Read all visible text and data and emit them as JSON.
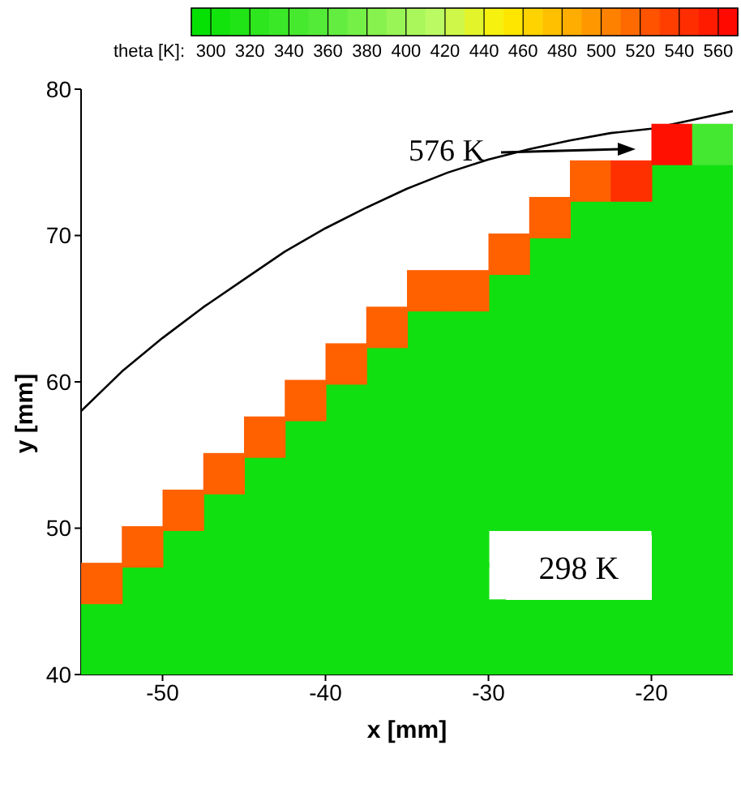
{
  "chart_data": {
    "type": "scatter",
    "xlabel": "x  [mm]",
    "ylabel": "y  [mm]",
    "clabel": "theta [K]:",
    "clim": [
      290,
      570
    ],
    "cticks": [
      300,
      320,
      340,
      360,
      380,
      400,
      420,
      440,
      460,
      480,
      500,
      520,
      540,
      560
    ],
    "xlim": [
      -55,
      -15
    ],
    "xticks": [
      -50,
      -40,
      -30,
      -20
    ],
    "ylim": [
      40,
      80
    ],
    "yticks": [
      40,
      50,
      60,
      70,
      80
    ],
    "marker": "square",
    "series": [
      {
        "color": "#10e010",
        "x": [
          -53.75,
          -53.75
        ],
        "values": [
          41.25,
          43.75
        ]
      },
      {
        "color": "#10e010",
        "x": [
          -51.25,
          -51.25,
          -51.25
        ],
        "values": [
          41.25,
          43.75,
          46.25
        ]
      },
      {
        "color": "#10e010",
        "x": [
          -48.75,
          -48.75,
          -48.75,
          -48.75
        ],
        "values": [
          41.25,
          43.75,
          46.25,
          48.75
        ]
      },
      {
        "color": "#10e010",
        "x": [
          -46.25,
          -46.25,
          -46.25,
          -46.25,
          -46.25
        ],
        "values": [
          41.25,
          43.75,
          46.25,
          48.75,
          51.25
        ]
      },
      {
        "color": "#10e010",
        "x": [
          -43.75,
          -43.75,
          -43.75,
          -43.75,
          -43.75,
          -43.75
        ],
        "values": [
          41.25,
          43.75,
          46.25,
          48.75,
          51.25,
          53.75
        ]
      },
      {
        "color": "#10e010",
        "x": [
          -41.25,
          -41.25,
          -41.25,
          -41.25,
          -41.25,
          -41.25,
          -41.25
        ],
        "values": [
          41.25,
          43.75,
          46.25,
          48.75,
          51.25,
          53.75,
          56.25
        ]
      },
      {
        "color": "#10e010",
        "x": [
          -38.75,
          -38.75,
          -38.75,
          -38.75,
          -38.75,
          -38.75,
          -38.75,
          -38.75
        ],
        "values": [
          41.25,
          43.75,
          46.25,
          48.75,
          51.25,
          53.75,
          56.25,
          58.75
        ]
      },
      {
        "color": "#10e010",
        "x": [
          -36.25,
          -36.25,
          -36.25,
          -36.25,
          -36.25,
          -36.25,
          -36.25,
          -36.25,
          -36.25
        ],
        "values": [
          41.25,
          43.75,
          46.25,
          48.75,
          51.25,
          53.75,
          56.25,
          58.75,
          61.25
        ]
      },
      {
        "color": "#10e010",
        "x": [
          -33.75,
          -33.75,
          -33.75,
          -33.75,
          -33.75,
          -33.75,
          -33.75,
          -33.75,
          -33.75,
          -33.75
        ],
        "values": [
          41.25,
          43.75,
          46.25,
          48.75,
          51.25,
          53.75,
          56.25,
          58.75,
          61.25,
          63.75
        ]
      },
      {
        "color": "#10e010",
        "x": [
          -31.25,
          -31.25,
          -31.25,
          -31.25,
          -31.25,
          -31.25,
          -31.25,
          -31.25,
          -31.25,
          -31.25
        ],
        "values": [
          41.25,
          43.75,
          46.25,
          48.75,
          51.25,
          53.75,
          56.25,
          58.75,
          61.25,
          63.75
        ]
      },
      {
        "color": "#10e010",
        "x": [
          -28.75,
          -28.75,
          -28.75,
          -28.75,
          -28.75,
          -28.75,
          -28.75,
          -28.75,
          -28.75
        ],
        "values": [
          41.25,
          43.75,
          51.25,
          53.75,
          56.25,
          58.75,
          61.25,
          63.75,
          66.25
        ]
      },
      {
        "color": "#10e010",
        "x": [
          -26.25,
          -26.25,
          -26.25,
          -26.25,
          -26.25,
          -26.25,
          -26.25,
          -26.25,
          -26.25,
          -26.25
        ],
        "values": [
          41.25,
          43.75,
          51.25,
          53.75,
          56.25,
          58.75,
          61.25,
          63.75,
          66.25,
          68.75
        ]
      },
      {
        "color": "#10e010",
        "x": [
          -23.75,
          -23.75,
          -23.75,
          -23.75,
          -23.75,
          -23.75,
          -23.75,
          -23.75,
          -23.75,
          -23.75,
          -23.75
        ],
        "values": [
          41.25,
          43.75,
          51.25,
          53.75,
          56.25,
          58.75,
          61.25,
          63.75,
          66.25,
          68.75,
          71.25
        ]
      },
      {
        "color": "#10e010",
        "x": [
          -21.25,
          -21.25,
          -21.25,
          -21.25,
          -21.25,
          -21.25,
          -21.25,
          -21.25,
          -21.25,
          -21.25,
          -21.25
        ],
        "values": [
          41.25,
          43.75,
          51.25,
          53.75,
          56.25,
          58.75,
          61.25,
          63.75,
          66.25,
          68.75,
          71.25
        ]
      },
      {
        "color": "#10e010",
        "x": [
          -18.75,
          -18.75,
          -18.75,
          -18.75,
          -18.75,
          -18.75,
          -18.75,
          -18.75,
          -18.75,
          -18.75,
          -18.75,
          -18.75,
          -18.75,
          -18.75
        ],
        "values": [
          41.25,
          43.75,
          46.25,
          48.75,
          51.25,
          53.75,
          56.25,
          58.75,
          61.25,
          63.75,
          66.25,
          68.75,
          71.25,
          73.75
        ]
      },
      {
        "color": "#10e010",
        "x": [
          -16.25,
          -16.25,
          -16.25,
          -16.25,
          -16.25,
          -16.25,
          -16.25,
          -16.25,
          -16.25,
          -16.25,
          -16.25,
          -16.25,
          -16.25,
          -16.25
        ],
        "values": [
          41.25,
          43.75,
          46.25,
          48.75,
          51.25,
          53.75,
          56.25,
          58.75,
          61.25,
          63.75,
          66.25,
          68.75,
          71.25,
          73.75
        ]
      },
      {
        "color": "#ff6000",
        "x": [
          -53.75,
          -51.25,
          -48.75,
          -46.25,
          -43.75,
          -41.25,
          -38.75,
          -36.25,
          -33.75,
          -31.25,
          -28.75,
          -26.25,
          -23.75
        ],
        "values": [
          46.25,
          48.75,
          51.25,
          53.75,
          56.25,
          58.75,
          61.25,
          63.75,
          66.25,
          66.25,
          68.75,
          71.25,
          73.75
        ]
      },
      {
        "color": "#ff3000",
        "x": [
          -21.25
        ],
        "values": [
          73.75
        ]
      },
      {
        "color": "#ff1000",
        "x": [
          -18.75
        ],
        "values": [
          76.25
        ]
      },
      {
        "color": "#44e830",
        "x": [
          -16.25
        ],
        "values": [
          76.25
        ]
      },
      {
        "type": "line",
        "color": "#000000",
        "marker": "none",
        "x": [
          -55,
          -52.5,
          -50,
          -47.5,
          -45,
          -42.5,
          -40,
          -37.5,
          -35,
          -32.5,
          -30,
          -27.5,
          -25,
          -22.5,
          -20,
          -17.5,
          -15
        ],
        "values": [
          58,
          60.7,
          63,
          65.1,
          67,
          68.9,
          70.5,
          71.9,
          73.2,
          74.3,
          75.2,
          75.9,
          76.5,
          77,
          77.3,
          77.9,
          78.5
        ]
      }
    ],
    "annotations": [
      "576 K",
      "298 K"
    ]
  }
}
